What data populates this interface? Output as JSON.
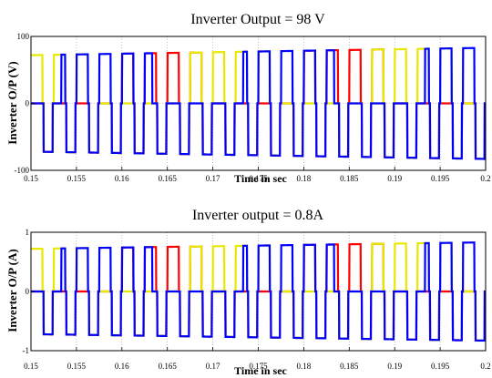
{
  "chart_data": [
    {
      "type": "line",
      "title": "Inverter Output = 98 V",
      "ylabel": "Inverter O/P (V)",
      "xlabel": "Time in sec",
      "x_ticks": [
        "0.15",
        "0.155",
        "0.16",
        "0.165",
        "0.17",
        "0.175",
        "0.18",
        "0.185",
        "0.19",
        "0.195",
        "0.2"
      ],
      "y_ticks": [
        "100",
        "0",
        "-100"
      ],
      "xlim": [
        0.15,
        0.2
      ],
      "ylim": [
        -100,
        100
      ],
      "grid": true,
      "waveform": {
        "fundamental_hz": 50,
        "pulse_period_s": 0.0025,
        "amplitude_start": 72,
        "amplitude_end": 83
      },
      "series": [
        {
          "color": "#ff0000",
          "phase_offset_s": 0.0
        },
        {
          "color": "#e8e800",
          "phase_offset_s": 0.00667
        },
        {
          "color": "#0000ff",
          "phase_offset_s": 0.01333
        }
      ]
    },
    {
      "type": "line",
      "title": "Inverter output = 0.8A",
      "ylabel": "Inverter O/P (A)",
      "xlabel": "Time in sec",
      "x_ticks": [
        "0.15",
        "0.155",
        "0.16",
        "0.165",
        "0.17",
        "0.175",
        "0.18",
        "0.185",
        "0.19",
        "0.195",
        "0.2"
      ],
      "y_ticks": [
        "1",
        "0",
        "-1"
      ],
      "xlim": [
        0.15,
        0.2
      ],
      "ylim": [
        -1,
        1
      ],
      "grid": true,
      "waveform": {
        "fundamental_hz": 50,
        "pulse_period_s": 0.0025,
        "amplitude_start": 0.72,
        "amplitude_end": 0.83
      },
      "series": [
        {
          "color": "#ff0000",
          "phase_offset_s": 0.0
        },
        {
          "color": "#e8e800",
          "phase_offset_s": 0.00667
        },
        {
          "color": "#0000ff",
          "phase_offset_s": 0.01333
        }
      ]
    }
  ]
}
